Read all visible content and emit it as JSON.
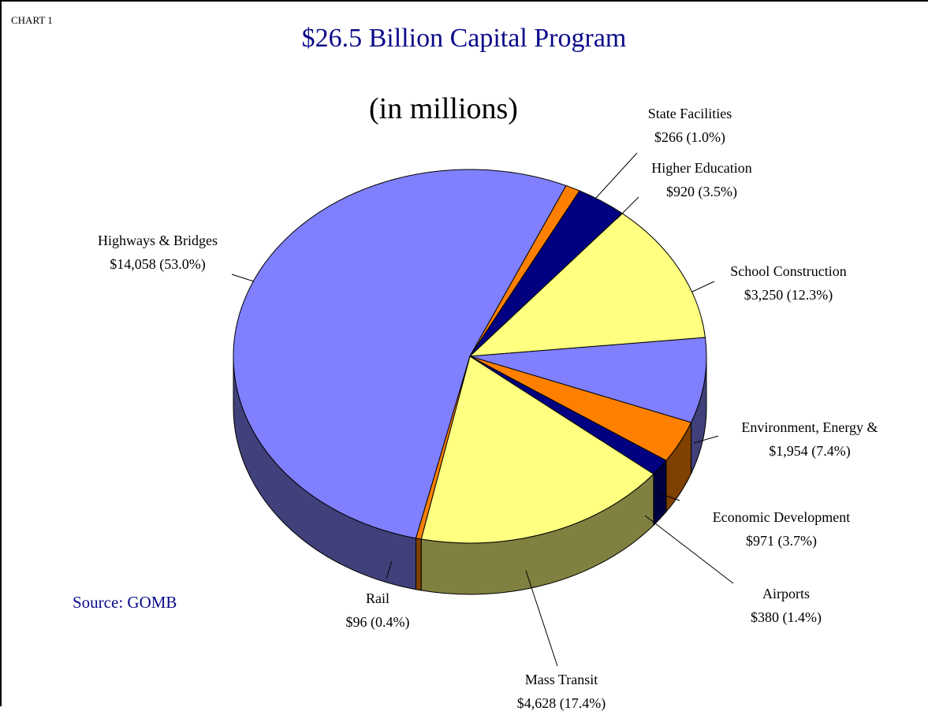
{
  "chart_tag": "CHART 1",
  "chart_data": {
    "type": "pie",
    "title": "$26.5 Billion Capital Program",
    "subtitle": "(in millions)",
    "source": "Source: GOMB",
    "slices": [
      {
        "label": "Highways & Bridges",
        "value": 14058,
        "percent": 53.0,
        "value_text": "$14,058  (53.0%)",
        "color": "#8080ff",
        "side_color": "#40407a"
      },
      {
        "label": "State Facilities",
        "value": 266,
        "percent": 1.0,
        "value_text": "$266  (1.0%)",
        "color": "#ff8000",
        "side_color": "#7f4000"
      },
      {
        "label": "Higher Education",
        "value": 920,
        "percent": 3.5,
        "value_text": "$920  (3.5%)",
        "color": "#000080",
        "side_color": "#000040"
      },
      {
        "label": "School Construction",
        "value": 3250,
        "percent": 12.3,
        "value_text": "$3,250  (12.3%)",
        "color": "#ffff80",
        "side_color": "#808040"
      },
      {
        "label": "Environment, Energy &",
        "value": 1954,
        "percent": 7.4,
        "value_text": "$1,954  (7.4%)",
        "color": "#8080ff",
        "side_color": "#40407a"
      },
      {
        "label": "Economic Development",
        "value": 971,
        "percent": 3.7,
        "value_text": "$971  (3.7%)",
        "color": "#ff8000",
        "side_color": "#7f4000"
      },
      {
        "label": "Airports",
        "value": 380,
        "percent": 1.4,
        "value_text": "$380  (1.4%)",
        "color": "#000080",
        "side_color": "#000040"
      },
      {
        "label": "Mass Transit",
        "value": 4628,
        "percent": 17.4,
        "value_text": "$4,628  (17.4%)",
        "color": "#ffff80",
        "side_color": "#808040"
      },
      {
        "label": "Rail",
        "value": 96,
        "percent": 0.4,
        "value_text": "$96  (0.4%)",
        "color": "#ff8000",
        "side_color": "#7f4000"
      }
    ]
  }
}
